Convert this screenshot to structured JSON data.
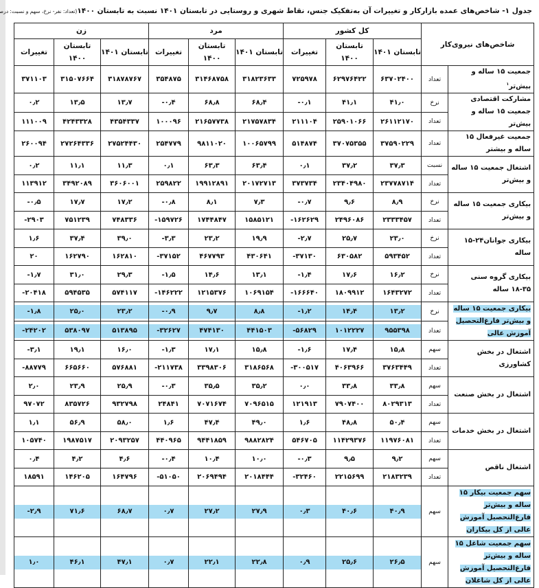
{
  "title": "جدول ۱- شاخص‌های عمده  بازارکار و تغییرات آن به‌تفکیک جنس، نقاط شهری و روستایی در تابستان ۱۴۰۱ نسبت به تابستان ۱۴۰۰",
  "title_unit": "(تعداد: نفر- نرخ، سهم و نسبت: درصد)",
  "highlight_color": "#a8dcf3",
  "header": {
    "indicator_col": "شاخص‌های نیروی‌کار",
    "groups": [
      "کل کشور",
      "مرد",
      "زن"
    ],
    "subcols": [
      "تابستان ۱۴۰۱",
      "تابستان ۱۴۰۰",
      "تغییرات"
    ]
  },
  "rows": [
    {
      "label": "جمعیت ۱۵ ساله و بیش‌تر",
      "note": "۱",
      "highlight": false,
      "sub": [
        {
          "type": "تعداد",
          "values": [
            "۶۳۷۰۲۴۰۰",
            "۶۲۹۷۶۴۲۲",
            "۷۲۵۹۷۸",
            "۳۱۸۲۳۶۳۳",
            "۳۱۴۶۸۷۵۸",
            "۳۵۴۸۷۵",
            "۳۱۸۷۸۷۶۷",
            "۳۱۵۰۷۶۶۴",
            "۳۷۱۱۰۳"
          ]
        }
      ]
    },
    {
      "label": "مشارکت اقتصادی جمعیت ۱۵ ساله و بیش‌تر",
      "highlight": false,
      "sub": [
        {
          "type": "نرخ",
          "values": [
            "۴۱٫۰",
            "۴۱٫۱",
            "-۰٫۱",
            "۶۸٫۴",
            "۶۸٫۸",
            "-۰٫۴",
            "۱۳٫۷",
            "۱۳٫۵",
            "۰٫۲"
          ]
        },
        {
          "type": "تعداد",
          "values": [
            "۲۶۱۱۲۱۷۰",
            "۲۵۹۰۱۰۶۶",
            "۲۱۱۱۰۴",
            "۲۱۷۵۷۸۳۴",
            "۲۱۶۵۷۷۳۸",
            "۱۰۰۰۹۶",
            "۴۳۵۴۳۳۷",
            "۴۲۴۳۳۲۸",
            "۱۱۱۰۰۹"
          ]
        }
      ]
    },
    {
      "label": "جمعیت غیرفعال ۱۵ ساله و بیشتر",
      "highlight": false,
      "sub": [
        {
          "type": "تعداد",
          "values": [
            "۳۷۵۹۰۲۲۹",
            "۳۷۰۷۵۳۵۵",
            "۵۱۴۸۷۴",
            "۱۰۰۶۵۷۹۹",
            "۹۸۱۱۰۲۰",
            "۲۵۴۷۷۹",
            "۲۷۵۲۴۴۳۰",
            "۲۷۲۶۴۳۳۶",
            "۲۶۰۰۹۴"
          ]
        }
      ]
    },
    {
      "label": "اشتغال جمعیت ۱۵ ساله و بیش‌تر",
      "highlight": false,
      "sub": [
        {
          "type": "نسبت",
          "values": [
            "۳۷٫۳",
            "۳۷٫۲",
            "۰٫۱",
            "۶۳٫۴",
            "۶۳٫۳",
            "۰٫۱",
            "۱۱٫۳",
            "۱۱٫۱",
            "۰٫۲"
          ]
        },
        {
          "type": "تعداد",
          "values": [
            "۲۳۷۷۸۷۱۴",
            "۲۳۴۰۴۹۸۰",
            "۳۷۳۷۳۴",
            "۲۰۱۷۲۷۱۳",
            "۱۹۹۱۲۸۹۱",
            "۲۵۹۸۲۲",
            "۳۶۰۶۰۰۱",
            "۳۴۹۲۰۸۹",
            "۱۱۳۹۱۲"
          ]
        }
      ]
    },
    {
      "label": "بیکاری جمعیت ۱۵ ساله و بیش‌تر",
      "highlight": false,
      "sub": [
        {
          "type": "نرخ",
          "values": [
            "۸٫۹",
            "۹٫۶",
            "-۰٫۷",
            "۷٫۳",
            "۸٫۱",
            "-۰٫۸",
            "۱۷٫۲",
            "۱۷٫۷",
            "-۰٫۵"
          ]
        },
        {
          "type": "تعداد",
          "values": [
            "۲۳۳۳۴۵۷",
            "۲۴۹۶۰۸۶",
            "-۱۶۲۶۲۹",
            "۱۵۸۵۱۲۱",
            "۱۷۴۴۸۴۷",
            "-۱۵۹۷۲۶",
            "۷۴۸۳۳۶",
            "۷۵۱۲۳۹",
            "-۲۹۰۳"
          ]
        }
      ]
    },
    {
      "label": "بیکاری جوانان۲۴-۱۵ ساله",
      "highlight": false,
      "sub": [
        {
          "type": "نرخ",
          "values": [
            "۲۳٫۰",
            "۲۵٫۷",
            "-۲٫۷",
            "۱۹٫۹",
            "۲۳٫۲",
            "-۳٫۳",
            "۳۹٫۰",
            "۳۷٫۴",
            "۱٫۶"
          ]
        },
        {
          "type": "تعداد",
          "values": [
            "۵۹۳۴۵۲",
            "۶۳۰۵۸۲",
            "-۳۷۱۳۰",
            "۴۳۰۶۴۱",
            "۴۶۷۷۹۳",
            "-۳۷۱۵۲",
            "۱۶۲۸۱۰",
            "۱۶۲۷۹۰",
            "۲۰"
          ]
        }
      ]
    },
    {
      "label": "بیکاری گروه سنی ۳۵-۱۸ ساله",
      "highlight": false,
      "sub": [
        {
          "type": "نرخ",
          "values": [
            "۱۶٫۲",
            "۱۷٫۶",
            "-۱٫۴",
            "۱۳٫۱",
            "۱۴٫۶",
            "-۱٫۵",
            "۲۹٫۳",
            "۳۱٫۰",
            "-۱٫۷"
          ]
        },
        {
          "type": "تعداد",
          "values": [
            "۱۶۴۳۲۷۲",
            "۱۸۰۹۹۱۲",
            "-۱۶۶۶۴۰",
            "۱۰۶۹۱۵۴",
            "۱۲۱۵۳۷۶",
            "-۱۴۶۲۲۲",
            "۵۷۴۱۱۷",
            "۵۹۴۵۳۵",
            "-۲۰۴۱۸"
          ]
        }
      ]
    },
    {
      "label": "بیکاری جمعیت ۱۵ ساله و بیش‌تر فارغ‌التحصیل آموزش عالی",
      "highlight": true,
      "sub": [
        {
          "type": "نرخ",
          "values": [
            "۱۳٫۲",
            "۱۴٫۴",
            "-۱٫۲",
            "۸٫۸",
            "۹٫۷",
            "-۰٫۹",
            "۲۳٫۲",
            "۲۵٫۰",
            "-۱٫۸"
          ]
        },
        {
          "type": "تعداد",
          "values": [
            "۹۵۵۳۹۸",
            "۱۰۱۲۲۲۷",
            "-۵۶۸۲۹",
            "۴۴۱۵۰۳",
            "۴۷۴۱۳۰",
            "-۳۲۶۲۷",
            "۵۱۳۸۹۵",
            "۵۳۸۰۹۷",
            "-۲۴۲۰۲"
          ]
        }
      ]
    },
    {
      "label": "اشتغال در بخش کشاورزی",
      "highlight": false,
      "sub": [
        {
          "type": "سهم",
          "values": [
            "۱۵٫۸",
            "۱۷٫۴",
            "-۱٫۶",
            "۱۵٫۸",
            "۱۷٫۱",
            "-۱٫۳",
            "۱۶٫۰",
            "۱۹٫۱",
            "-۳٫۱"
          ]
        },
        {
          "type": "تعداد",
          "values": [
            "۳۷۶۳۴۴۹",
            "۴۰۶۳۹۶۶",
            "-۳۰۰۵۱۷",
            "۳۱۸۶۵۶۸",
            "۳۳۹۸۳۰۶",
            "-۲۱۱۷۳۸",
            "۵۷۶۸۸۱",
            "۶۶۵۶۶۰",
            "-۸۸۷۷۹"
          ]
        }
      ]
    },
    {
      "label": "اشتغال در بخش صنعت",
      "highlight": false,
      "sub": [
        {
          "type": "سهم",
          "values": [
            "۳۳٫۸",
            "۳۳٫۸",
            "۰٫۰",
            "۳۵٫۲",
            "۳۵٫۵",
            "-۰٫۳",
            "۲۵٫۹",
            "۲۳٫۹",
            "۲٫۰"
          ]
        },
        {
          "type": "تعداد",
          "values": [
            "۸۰۲۹۳۱۳",
            "۷۹۰۷۴۰۰",
            "۱۲۱۹۱۳",
            "۷۰۹۶۵۱۵",
            "۷۰۷۱۶۷۴",
            "۲۴۸۴۱",
            "۹۳۲۷۹۸",
            "۸۳۵۷۲۶",
            "۹۷۰۷۲"
          ]
        }
      ]
    },
    {
      "label": "اشتغال در بخش خدمات",
      "highlight": false,
      "sub": [
        {
          "type": "سهم",
          "values": [
            "۵۰٫۴",
            "۴۸٫۸",
            "۱٫۶",
            "۴۹٫۰",
            "۴۷٫۴",
            "۱٫۶",
            "۵۸٫۰",
            "۵۶٫۹",
            "۱٫۱"
          ]
        },
        {
          "type": "تعداد",
          "values": [
            "۱۱۹۷۶۰۸۱",
            "۱۱۴۲۹۳۷۶",
            "۵۴۶۷۰۵",
            "۹۸۸۲۸۲۴",
            "۹۴۴۱۸۵۹",
            "۴۴۰۹۶۵",
            "۲۰۹۳۲۵۷",
            "۱۹۸۷۵۱۷",
            "۱۰۵۷۴۰"
          ]
        }
      ]
    },
    {
      "label": "اشتغال ناقص",
      "highlight": false,
      "sub": [
        {
          "type": "سهم",
          "values": [
            "۹٫۲",
            "۹٫۵",
            "-۰٫۳",
            "۱۰٫۰",
            "۱۰٫۴",
            "-۰٫۴",
            "۴٫۶",
            "۴٫۲",
            "۰٫۴"
          ]
        },
        {
          "type": "تعداد",
          "values": [
            "۲۱۸۳۲۳۹",
            "۲۲۱۵۶۹۹",
            "-۳۲۴۶۰",
            "۲۰۱۸۴۴۴",
            "۲۰۶۹۴۹۴",
            "-۵۱۰۵۰",
            "۱۶۴۷۹۶",
            "۱۴۶۲۰۵",
            "۱۸۵۹۱"
          ]
        }
      ]
    },
    {
      "label": "سهم جمعیت بیکار ۱۵ ساله و بیش‌تر فارغ‌التحصیل آموزش عالی از کل بیکاران",
      "highlight": true,
      "tall": true,
      "sub": [
        {
          "type": "سهم",
          "values": [
            "۴۰٫۹",
            "۴۰٫۶",
            "۰٫۳",
            "۲۷٫۹",
            "۲۷٫۲",
            "۰٫۷",
            "۶۸٫۷",
            "۷۱٫۶",
            "-۲٫۹"
          ]
        }
      ]
    },
    {
      "label": "سهم جمعیت شاغل ۱۵ ساله و بیش‌تر فارغ‌التحصیل آموزش عالی از کل شاغلان",
      "highlight": true,
      "tall": true,
      "sub": [
        {
          "type": "سهم",
          "values": [
            "۲۶٫۵",
            "۲۵٫۶",
            "۰٫۹",
            "۲۲٫۸",
            "۲۲٫۱",
            "۰٫۷",
            "۴۷٫۱",
            "۴۶٫۱",
            "۱٫۰"
          ]
        }
      ]
    }
  ]
}
